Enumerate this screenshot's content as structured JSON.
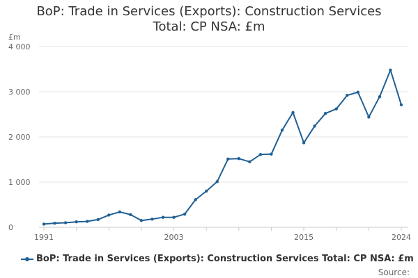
{
  "title": "BoP: Trade in Services (Exports): Construction Services Total: CP NSA: £m",
  "title_line1": "BoP: Trade in Services (Exports): Construction Services",
  "title_line2": "Total: CP NSA: £m",
  "source_label": "Source:",
  "colors": {
    "series": "#206095",
    "grid": "#e6e6e6",
    "axis": "#cccccc"
  },
  "chart_data": {
    "type": "line",
    "ylabel": "£m",
    "ylim": [
      0,
      4000
    ],
    "yticks": [
      0,
      1000,
      2000,
      3000,
      4000
    ],
    "ytick_labels": [
      "0",
      "1 000",
      "2 000",
      "3 000",
      "4 000"
    ],
    "xlim": [
      1991,
      2024
    ],
    "xticks_labeled": [
      1991,
      2003,
      2015,
      2024
    ],
    "grid": true,
    "legend": "bottom",
    "series": [
      {
        "name": "BoP: Trade in Services (Exports): Construction Services Total: CP NSA: £m",
        "x": [
          1991,
          1992,
          1993,
          1994,
          1995,
          1996,
          1997,
          1998,
          1999,
          2000,
          2001,
          2002,
          2003,
          2004,
          2005,
          2006,
          2007,
          2008,
          2009,
          2010,
          2011,
          2012,
          2013,
          2014,
          2015,
          2016,
          2017,
          2018,
          2019,
          2020,
          2021,
          2022,
          2023,
          2024
        ],
        "values": [
          70,
          90,
          100,
          120,
          130,
          170,
          270,
          340,
          280,
          150,
          180,
          220,
          220,
          290,
          610,
          800,
          1010,
          1510,
          1520,
          1450,
          1610,
          1620,
          2150,
          2540,
          1870,
          2240,
          2520,
          2620,
          2920,
          2990,
          2440,
          2890,
          3480,
          2710
        ]
      }
    ]
  }
}
